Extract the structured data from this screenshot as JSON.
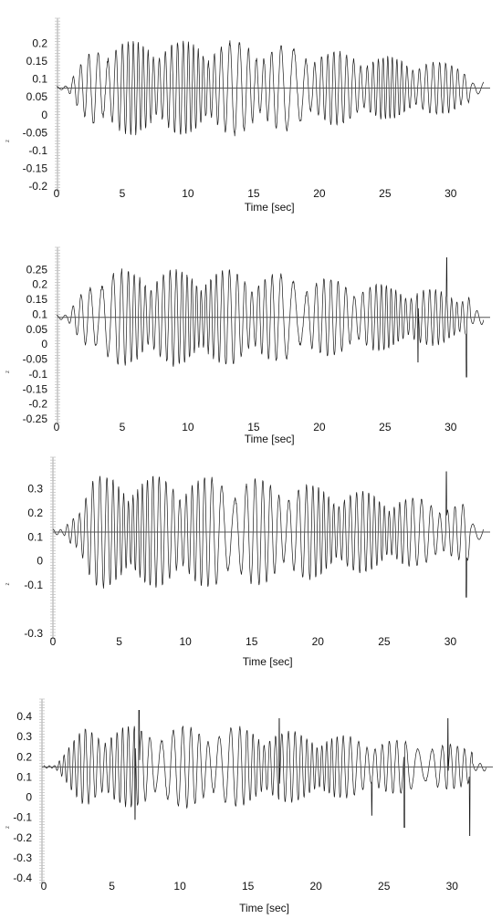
{
  "chart_data": [
    {
      "type": "line",
      "xlabel": "Time [sec]",
      "ylabel": "z",
      "xlim": [
        0,
        33
      ],
      "ylim": [
        -0.2,
        0.25
      ],
      "xticks": [
        0,
        5,
        10,
        15,
        20,
        25,
        30
      ],
      "yticks": [
        -0.2,
        -0.15,
        -0.1,
        -0.05,
        0,
        0.05,
        0.1,
        0.15,
        0.2
      ],
      "yticklabels": [
        "-0.2",
        "-0.15",
        "-0.1",
        "-0.05",
        "0",
        "0.05",
        "0.1",
        "0.15",
        "0.2"
      ],
      "series": [
        {
          "baseline": 0.075,
          "amp_peak": 0.13,
          "spike_t": [],
          "spike_v": [],
          "seed": 11
        }
      ]
    },
    {
      "type": "line",
      "xlabel": "Time [sec]",
      "ylabel": "z",
      "xlim": [
        0,
        33
      ],
      "ylim": [
        -0.25,
        0.3
      ],
      "xticks": [
        0,
        5,
        10,
        15,
        20,
        25,
        30
      ],
      "yticks": [
        -0.25,
        -0.2,
        -0.15,
        -0.1,
        -0.05,
        0,
        0.05,
        0.1,
        0.15,
        0.2,
        0.25
      ],
      "yticklabels": [
        "-0.25",
        "-0.2",
        "-0.15",
        "-0.1",
        "-0.05",
        "0",
        "0.05",
        "0.1",
        "0.15",
        "0.2",
        "0.25"
      ],
      "series": [
        {
          "baseline": 0.09,
          "amp_peak": 0.16,
          "spike_t": [
            29.7,
            31.2,
            27.5
          ],
          "spike_v": [
            0.29,
            -0.11,
            -0.06
          ],
          "seed": 23
        }
      ]
    },
    {
      "type": "line",
      "xlabel": "Time [sec]",
      "ylabel": "z",
      "xlim": [
        0,
        33
      ],
      "ylim": [
        -0.3,
        0.4
      ],
      "xticks": [
        0,
        5,
        10,
        15,
        20,
        25,
        30
      ],
      "yticks": [
        -0.3,
        -0.1,
        0,
        0.1,
        0.2,
        0.3
      ],
      "yticklabels": [
        "-0.3",
        "-0.1",
        "0",
        "0.1",
        "0.2",
        "0.3"
      ],
      "series": [
        {
          "baseline": 0.12,
          "amp_peak": 0.23,
          "spike_t": [
            29.7,
            31.2
          ],
          "spike_v": [
            0.37,
            -0.15
          ],
          "seed": 37
        }
      ]
    },
    {
      "type": "line",
      "xlabel": "Time [sec]",
      "ylabel": "z",
      "xlim": [
        0,
        33
      ],
      "ylim": [
        -0.4,
        0.45
      ],
      "xticks": [
        0,
        5,
        10,
        15,
        20,
        25,
        30
      ],
      "yticks": [
        -0.4,
        -0.3,
        -0.2,
        -0.1,
        0,
        0.1,
        0.2,
        0.3,
        0.4
      ],
      "yticklabels": [
        "-0.4",
        "-0.3",
        "-0.2",
        "-0.1",
        "0",
        "0.1",
        "0.2",
        "0.3",
        "0.4"
      ],
      "series": [
        {
          "baseline": 0.15,
          "amp_peak": 0.2,
          "spike_t": [
            7.0,
            6.7,
            17.3,
            29.7,
            31.3,
            24.1,
            26.5
          ],
          "spike_v": [
            0.43,
            -0.11,
            0.39,
            0.39,
            -0.19,
            -0.09,
            -0.15
          ],
          "seed": 51
        }
      ]
    }
  ]
}
